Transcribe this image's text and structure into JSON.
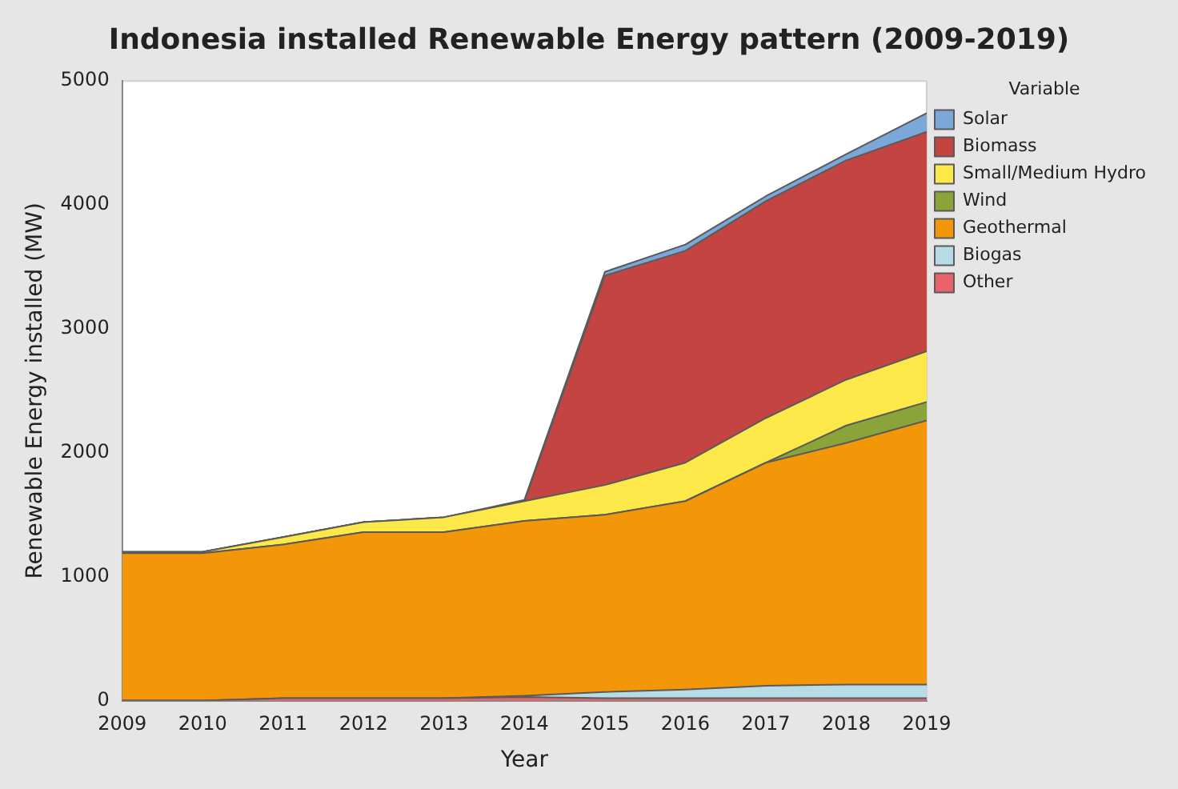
{
  "chart_data": {
    "type": "area",
    "title": "Indonesia installed Renewable Energy pattern (2009-2019)",
    "xlabel": "Year",
    "ylabel": "Renewable Energy installed (MW)",
    "legend_title": "Variable",
    "legend": "right",
    "stacked": true,
    "grid": false,
    "x": [
      2009,
      2010,
      2011,
      2012,
      2013,
      2014,
      2015,
      2016,
      2017,
      2018,
      2019
    ],
    "xlim": [
      2009,
      2019
    ],
    "xticks": [
      2009,
      2010,
      2011,
      2012,
      2013,
      2014,
      2015,
      2016,
      2017,
      2018,
      2019
    ],
    "ylim": [
      0,
      5000
    ],
    "yticks": [
      0,
      1000,
      2000,
      3000,
      4000,
      5000
    ],
    "series": [
      {
        "name": "Other",
        "color": "#e8636a",
        "values": [
          0,
          0,
          20,
          20,
          20,
          30,
          20,
          20,
          20,
          20,
          20
        ]
      },
      {
        "name": "Biogas",
        "color": "#b8dce6",
        "values": [
          0,
          0,
          0,
          0,
          0,
          10,
          50,
          70,
          100,
          110,
          110
        ]
      },
      {
        "name": "Geothermal",
        "color": "#f39708",
        "values": [
          1190,
          1190,
          1240,
          1340,
          1340,
          1410,
          1430,
          1520,
          1800,
          1950,
          2130
        ]
      },
      {
        "name": "Wind",
        "color": "#8aa43a",
        "values": [
          0,
          0,
          0,
          0,
          0,
          0,
          0,
          0,
          0,
          140,
          150
        ]
      },
      {
        "name": "Small/Medium Hydro",
        "color": "#fde84a",
        "values": [
          10,
          10,
          60,
          80,
          120,
          160,
          240,
          310,
          360,
          370,
          410
        ]
      },
      {
        "name": "Biomass",
        "color": "#c44442",
        "values": [
          0,
          0,
          0,
          0,
          0,
          0,
          1690,
          1710,
          1750,
          1770,
          1770
        ]
      },
      {
        "name": "Solar",
        "color": "#7ba7d9",
        "values": [
          0,
          0,
          0,
          0,
          0,
          10,
          30,
          50,
          40,
          50,
          150
        ]
      }
    ]
  }
}
